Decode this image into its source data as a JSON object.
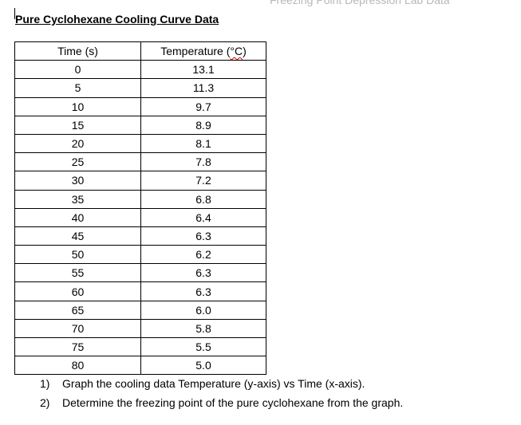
{
  "header": {
    "faded_text": "Freezing Point Depression Lab Data"
  },
  "title": "Pure Cyclohexane Cooling Curve Data",
  "table": {
    "headers": {
      "time": "Time (s)",
      "temperature_prefix": "Temperature (",
      "temperature_unit": "°C",
      "temperature_suffix": ")"
    },
    "rows": [
      {
        "time": "0",
        "temp": "13.1"
      },
      {
        "time": "5",
        "temp": "11.3"
      },
      {
        "time": "10",
        "temp": "9.7"
      },
      {
        "time": "15",
        "temp": "8.9"
      },
      {
        "time": "20",
        "temp": "8.1"
      },
      {
        "time": "25",
        "temp": "7.8"
      },
      {
        "time": "30",
        "temp": "7.2"
      },
      {
        "time": "35",
        "temp": "6.8"
      },
      {
        "time": "40",
        "temp": "6.4"
      },
      {
        "time": "45",
        "temp": "6.3"
      },
      {
        "time": "50",
        "temp": "6.2"
      },
      {
        "time": "55",
        "temp": "6.3"
      },
      {
        "time": "60",
        "temp": "6.3"
      },
      {
        "time": "65",
        "temp": "6.0"
      },
      {
        "time": "70",
        "temp": "5.8"
      },
      {
        "time": "75",
        "temp": "5.5"
      },
      {
        "time": "80",
        "temp": "5.0"
      }
    ]
  },
  "instructions": [
    {
      "number": "1)",
      "text": "Graph the cooling data Temperature (y-axis) vs Time (x-axis)."
    },
    {
      "number": "2)",
      "text": "Determine the freezing point of the pure cyclohexane from the graph."
    }
  ]
}
